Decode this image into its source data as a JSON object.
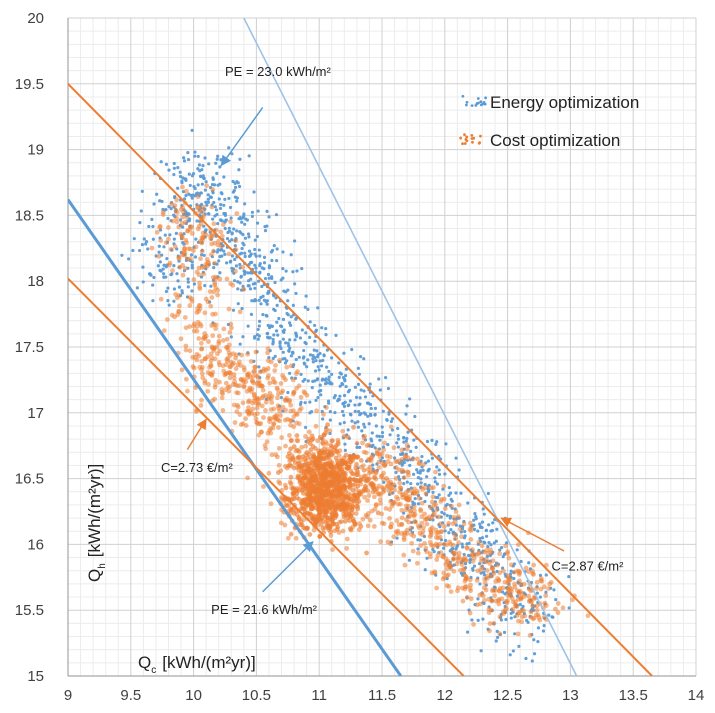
{
  "chart_data": {
    "type": "scatter",
    "xlim": [
      9,
      14
    ],
    "ylim": [
      15,
      20
    ],
    "x_ticks": [
      "9",
      "9.5",
      "10",
      "10.5",
      "11",
      "11.5",
      "12",
      "12.5",
      "13",
      "13.5",
      "14"
    ],
    "y_ticks": [
      "15",
      "15.5",
      "16",
      "16.5",
      "17",
      "17.5",
      "18",
      "18.5",
      "19",
      "19.5",
      "20"
    ],
    "xlabel": "Q",
    "xlabel_sub": "c",
    "xlabel_unit": "[kWh/(m²yr)]",
    "ylabel": "Q",
    "ylabel_sub": "h",
    "ylabel_unit": "[kWh/(m²yr)]",
    "grid": true,
    "legend_position": "top-right",
    "series": [
      {
        "name": "Energy optimization",
        "color": "#5b9bd5",
        "cloud_points": [
          [
            9.8,
            18.1
          ],
          [
            10,
            18.8
          ],
          [
            10.2,
            18.5
          ],
          [
            10.4,
            18.2
          ],
          [
            10.6,
            17.8
          ],
          [
            10.8,
            17.5
          ],
          [
            11.1,
            17.2
          ],
          [
            11.4,
            16.9
          ],
          [
            11.7,
            16.6
          ],
          [
            12.0,
            16.2
          ],
          [
            12.3,
            15.9
          ],
          [
            12.6,
            15.5
          ]
        ]
      },
      {
        "name": "Cost optimization",
        "color": "#ed7d31",
        "cloud_points": [
          [
            10.0,
            18.4
          ],
          [
            10.1,
            17.5
          ],
          [
            10.4,
            17.2
          ],
          [
            10.7,
            17.1
          ],
          [
            10.9,
            16.4
          ],
          [
            11.1,
            16.3
          ],
          [
            11.4,
            16.6
          ],
          [
            11.7,
            16.3
          ],
          [
            12.0,
            16.0
          ],
          [
            12.3,
            15.7
          ],
          [
            12.7,
            15.6
          ]
        ]
      }
    ],
    "lines": [
      {
        "label": "PE = 23.0 kWh/m²",
        "color": "#9dc3e6",
        "width": 1.6,
        "p1": [
          10.4,
          20
        ],
        "p2": [
          13.05,
          15
        ]
      },
      {
        "label": "PE = 21.6 kWh/m²",
        "color": "#5b9bd5",
        "width": 3,
        "p1": [
          9,
          18.62
        ],
        "p2": [
          11.65,
          15
        ]
      },
      {
        "label": "C=2.87 €/m²",
        "color": "#ed7d31",
        "width": 2,
        "p1": [
          9,
          19.5
        ],
        "p2": [
          13.65,
          15
        ]
      },
      {
        "label": "C=2.73 €/m²",
        "color": "#ed7d31",
        "width": 2,
        "p1": [
          9,
          18.02
        ],
        "p2": [
          12.15,
          15
        ]
      }
    ],
    "annotations": [
      {
        "text": "PE = 23.0 kWh/m²",
        "text_at": [
          10.25,
          19.56
        ],
        "arrow_from": [
          10.55,
          19.32
        ],
        "arrow_to": [
          10.22,
          18.88
        ]
      },
      {
        "text": "C=2.73 €/m²",
        "text_at": [
          9.74,
          16.55
        ],
        "arrow_from": [
          9.95,
          16.72
        ],
        "arrow_to": [
          10.1,
          16.95
        ]
      },
      {
        "text": "C=2.87 €/m²",
        "text_at": [
          12.85,
          15.8
        ],
        "arrow_from": [
          12.95,
          15.95
        ],
        "arrow_to": [
          12.45,
          16.2
        ]
      },
      {
        "text": "PE = 21.6 kWh/m²",
        "text_at": [
          10.14,
          15.47
        ],
        "arrow_from": [
          10.55,
          15.64
        ],
        "arrow_to": [
          10.95,
          16.02
        ]
      }
    ]
  }
}
